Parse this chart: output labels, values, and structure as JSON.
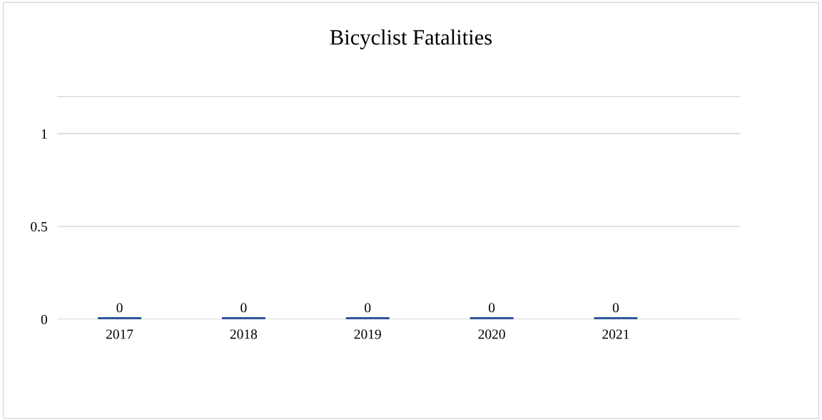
{
  "chart_data": {
    "type": "bar",
    "title": "Bicyclist Fatalities",
    "categories": [
      "2017",
      "2018",
      "2019",
      "2020",
      "2021"
    ],
    "values": [
      0,
      0,
      0,
      0,
      0
    ],
    "color": "#2f5597",
    "ylim": [
      0,
      1.2
    ],
    "yticks": [
      0,
      0.5,
      1
    ],
    "grid": "y",
    "data_labels": true
  }
}
